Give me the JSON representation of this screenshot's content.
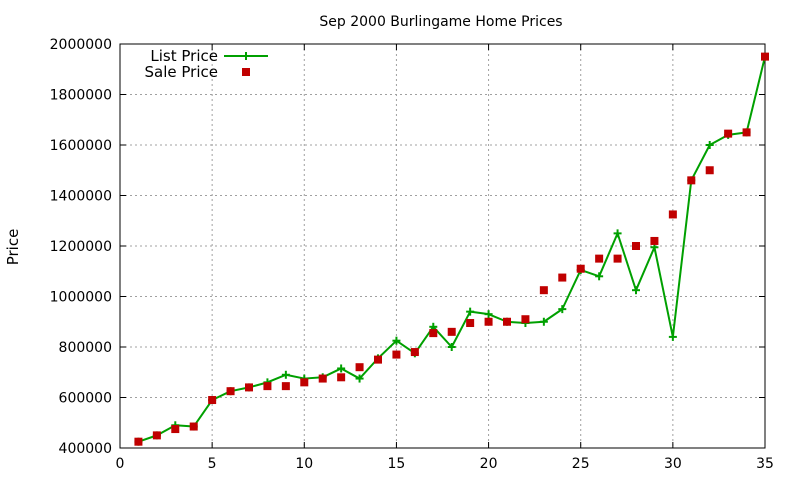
{
  "chart_data": {
    "type": "line",
    "title": "Sep 2000 Burlingame Home Prices",
    "xlabel": "",
    "ylabel": "Price",
    "xlim": [
      0,
      35
    ],
    "ylim": [
      400000,
      2000000
    ],
    "x_ticks": [
      0,
      5,
      10,
      15,
      20,
      25,
      30,
      35
    ],
    "y_ticks": [
      400000,
      600000,
      800000,
      1000000,
      1200000,
      1400000,
      1600000,
      1800000,
      2000000
    ],
    "grid": true,
    "legend_position": "top-left",
    "series": [
      {
        "name": "List Price",
        "type": "line",
        "marker": "plus",
        "color": "#00a000",
        "x": [
          1,
          2,
          3,
          4,
          5,
          6,
          7,
          8,
          9,
          10,
          11,
          12,
          13,
          14,
          15,
          16,
          17,
          18,
          19,
          20,
          21,
          22,
          23,
          24,
          25,
          26,
          27,
          28,
          29,
          30,
          31,
          32,
          33,
          34,
          35
        ],
        "y": [
          425000,
          450000,
          490000,
          485000,
          590000,
          625000,
          640000,
          660000,
          690000,
          675000,
          680000,
          715000,
          675000,
          755000,
          825000,
          775000,
          880000,
          800000,
          940000,
          930000,
          900000,
          895000,
          900000,
          950000,
          1105000,
          1080000,
          1250000,
          1025000,
          1195000,
          840000,
          1460000,
          1600000,
          1640000,
          1650000,
          1950000
        ]
      },
      {
        "name": "Sale Price",
        "type": "scatter",
        "marker": "square",
        "color": "#c00000",
        "x": [
          1,
          2,
          3,
          4,
          5,
          6,
          7,
          8,
          9,
          10,
          11,
          12,
          13,
          14,
          15,
          16,
          17,
          18,
          19,
          20,
          21,
          22,
          23,
          24,
          25,
          26,
          27,
          28,
          29,
          30,
          31,
          32,
          33,
          34,
          35
        ],
        "y": [
          425000,
          450000,
          475000,
          485000,
          590000,
          625000,
          640000,
          645000,
          645000,
          660000,
          675000,
          680000,
          720000,
          750000,
          770000,
          780000,
          855000,
          860000,
          895000,
          900000,
          900000,
          910000,
          1025000,
          1075000,
          1110000,
          1150000,
          1150000,
          1200000,
          1220000,
          1325000,
          1460000,
          1500000,
          1645000,
          1650000,
          1950000
        ]
      }
    ]
  }
}
